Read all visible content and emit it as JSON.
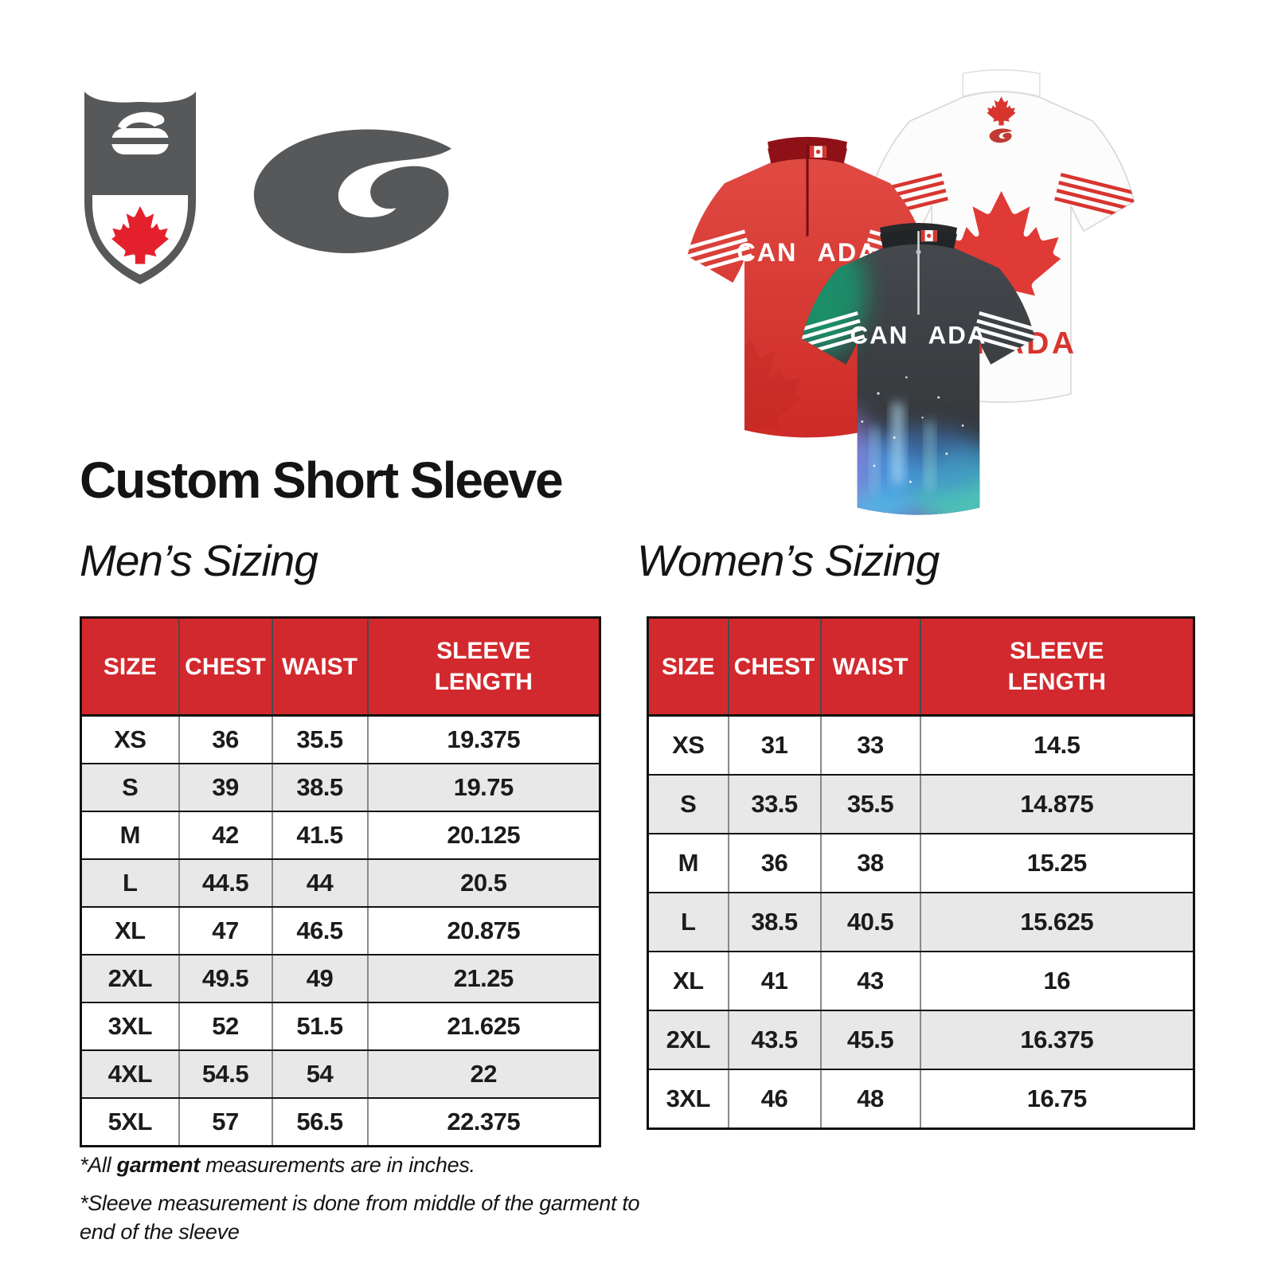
{
  "title": "Custom Short Sleeve",
  "branding": {
    "shield_logo": "curling-canada-shield",
    "swoosh_logo": "goldline-swoosh"
  },
  "jerseys": {
    "red_front": {
      "chest_left": "CAN",
      "chest_right": "ADA"
    },
    "white_back": {
      "chest": "CANADA"
    },
    "black_front": {
      "chest_left": "CAN",
      "chest_right": "ADA"
    }
  },
  "mens": {
    "heading": "Men’s Sizing",
    "table": {
      "headers": [
        "SIZE",
        "CHEST",
        "WAIST",
        "SLEEVE LENGTH"
      ],
      "rows": [
        [
          "XS",
          "36",
          "35.5",
          "19.375"
        ],
        [
          "S",
          "39",
          "38.5",
          "19.75"
        ],
        [
          "M",
          "42",
          "41.5",
          "20.125"
        ],
        [
          "L",
          "44.5",
          "44",
          "20.5"
        ],
        [
          "XL",
          "47",
          "46.5",
          "20.875"
        ],
        [
          "2XL",
          "49.5",
          "49",
          "21.25"
        ],
        [
          "3XL",
          "52",
          "51.5",
          "21.625"
        ],
        [
          "4XL",
          "54.5",
          "54",
          "22"
        ],
        [
          "5XL",
          "57",
          "56.5",
          "22.375"
        ]
      ]
    }
  },
  "womens": {
    "heading": "Women’s Sizing",
    "table": {
      "headers": [
        "SIZE",
        "CHEST",
        "WAIST",
        "SLEEVE LENGTH"
      ],
      "rows": [
        [
          "XS",
          "31",
          "33",
          "14.5"
        ],
        [
          "S",
          "33.5",
          "35.5",
          "14.875"
        ],
        [
          "M",
          "36",
          "38",
          "15.25"
        ],
        [
          "L",
          "38.5",
          "40.5",
          "15.625"
        ],
        [
          "XL",
          "41",
          "43",
          "16"
        ],
        [
          "2XL",
          "43.5",
          "45.5",
          "16.375"
        ],
        [
          "3XL",
          "46",
          "48",
          "16.75"
        ]
      ]
    }
  },
  "footnotes": {
    "line1_prefix": "*All ",
    "line1_bold": "garment",
    "line1_rest": " measurements are in inches.",
    "line2": "*Sleeve measurement is done from middle of the garment to end of the sleeve"
  },
  "colors": {
    "table_header_red": "#d2292e",
    "row_alt_gray": "#e8e8e9",
    "maple_leaf_red": "#e4202c",
    "logo_gray": "#57585a",
    "jersey_red": "#da3a33",
    "jersey_black": "#3a3e41"
  }
}
